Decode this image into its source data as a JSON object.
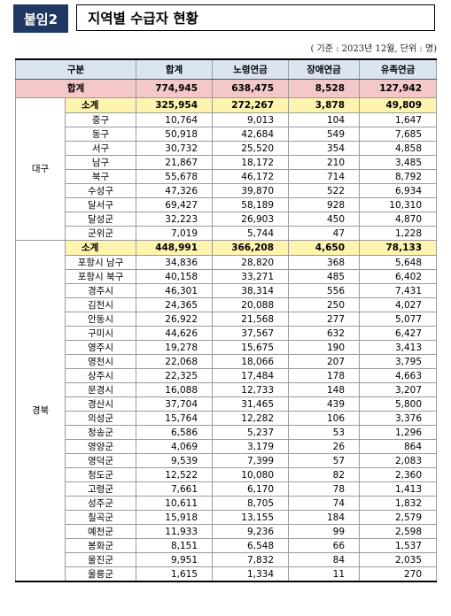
{
  "header": {
    "badge": "붙임2",
    "title": "지역별 수급자 현황"
  },
  "unit_note": "( 기준 : 2023년 12월, 단위 : 명)",
  "columns": [
    "구분",
    "합계",
    "노령연금",
    "장애연금",
    "유족연금"
  ],
  "grand_total": {
    "label": "합계",
    "values": [
      "774,945",
      "638,475",
      "8,528",
      "127,942"
    ]
  },
  "groups": [
    {
      "region": "대구",
      "subtotal": {
        "label": "소계",
        "values": [
          "325,954",
          "272,267",
          "3,878",
          "49,809"
        ]
      },
      "rows": [
        [
          "중구",
          "10,764",
          "9,013",
          "104",
          "1,647"
        ],
        [
          "동구",
          "50,918",
          "42,684",
          "549",
          "7,685"
        ],
        [
          "서구",
          "30,732",
          "25,520",
          "354",
          "4,858"
        ],
        [
          "남구",
          "21,867",
          "18,172",
          "210",
          "3,485"
        ],
        [
          "북구",
          "55,678",
          "46,172",
          "714",
          "8,792"
        ],
        [
          "수성구",
          "47,326",
          "39,870",
          "522",
          "6,934"
        ],
        [
          "달서구",
          "69,427",
          "58,189",
          "928",
          "10,310"
        ],
        [
          "달성군",
          "32,223",
          "26,903",
          "450",
          "4,870"
        ],
        [
          "군위군",
          "7,019",
          "5,744",
          "47",
          "1,228"
        ]
      ]
    },
    {
      "region": "경북",
      "subtotal": {
        "label": "소계",
        "values": [
          "448,991",
          "366,208",
          "4,650",
          "78,133"
        ]
      },
      "rows": [
        [
          "포항시 남구",
          "34,836",
          "28,820",
          "368",
          "5,648"
        ],
        [
          "포항시 북구",
          "40,158",
          "33,271",
          "485",
          "6,402"
        ],
        [
          "경주시",
          "46,301",
          "38,314",
          "556",
          "7,431"
        ],
        [
          "김천시",
          "24,365",
          "20,088",
          "250",
          "4,027"
        ],
        [
          "안동시",
          "26,922",
          "21,568",
          "277",
          "5,077"
        ],
        [
          "구미시",
          "44,626",
          "37,567",
          "632",
          "6,427"
        ],
        [
          "영주시",
          "19,278",
          "15,675",
          "190",
          "3,413"
        ],
        [
          "영천시",
          "22,068",
          "18,066",
          "207",
          "3,795"
        ],
        [
          "상주시",
          "22,325",
          "17,484",
          "178",
          "4,663"
        ],
        [
          "문경시",
          "16,088",
          "12,733",
          "148",
          "3,207"
        ],
        [
          "경산시",
          "37,704",
          "31,465",
          "439",
          "5,800"
        ],
        [
          "의성군",
          "15,764",
          "12,282",
          "106",
          "3,376"
        ],
        [
          "청송군",
          "6,586",
          "5,237",
          "53",
          "1,296"
        ],
        [
          "영양군",
          "4,069",
          "3,179",
          "26",
          "864"
        ],
        [
          "영덕군",
          "9,539",
          "7,399",
          "57",
          "2,083"
        ],
        [
          "청도군",
          "12,522",
          "10,080",
          "82",
          "2,360"
        ],
        [
          "고령군",
          "7,661",
          "6,170",
          "78",
          "1,413"
        ],
        [
          "성주군",
          "10,611",
          "8,705",
          "74",
          "1,832"
        ],
        [
          "칠곡군",
          "15,918",
          "13,155",
          "184",
          "2,579"
        ],
        [
          "예천군",
          "11,933",
          "9,236",
          "99",
          "2,598"
        ],
        [
          "봉화군",
          "8,151",
          "6,548",
          "66",
          "1,537"
        ],
        [
          "울진군",
          "9,951",
          "7,832",
          "84",
          "2,035"
        ],
        [
          "울릉군",
          "1,615",
          "1,334",
          "11",
          "270"
        ]
      ]
    }
  ],
  "colors": {
    "badge": "#1f3763",
    "header_row": "#dbe5f1",
    "grand_total_row": "#f4c7c8",
    "subtotal_row": "#fff3b0"
  }
}
